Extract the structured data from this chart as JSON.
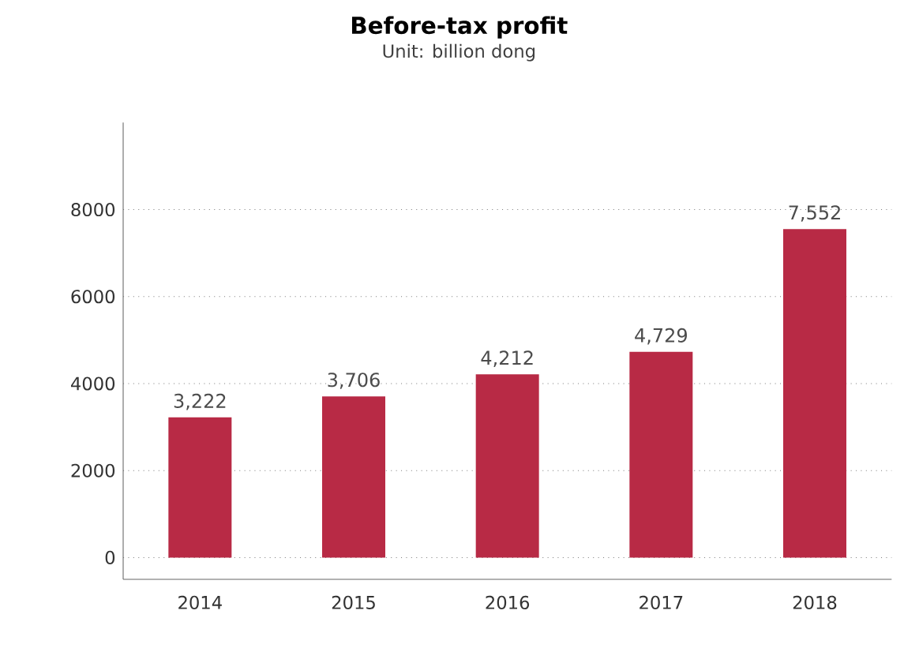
{
  "chart_data": {
    "type": "bar",
    "title": "Before-tax profit",
    "subtitle": "Unit: billion dong",
    "categories": [
      "2014",
      "2015",
      "2016",
      "2017",
      "2018"
    ],
    "values": [
      3222,
      3706,
      4212,
      4729,
      7552
    ],
    "value_labels": [
      "3,222",
      "3,706",
      "4,212",
      "4,729",
      "7,552"
    ],
    "color": "#b82a45",
    "ylim": [
      -500,
      10000
    ],
    "yticks": [
      0,
      2000,
      4000,
      6000,
      8000
    ],
    "grid": "y"
  }
}
